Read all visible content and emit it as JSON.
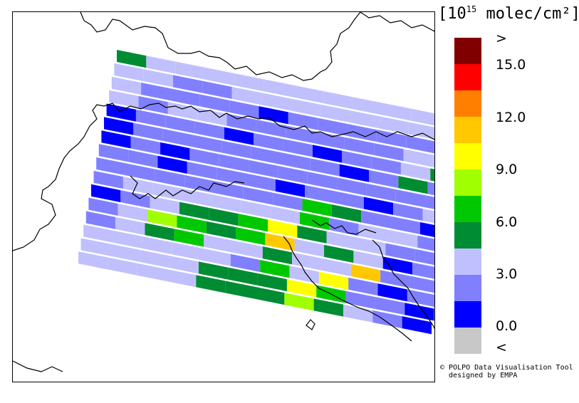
{
  "legend": {
    "units_prefix": "[10",
    "units_exponent": "15",
    "units_suffix": " molec/cm²]",
    "tick_labels": [
      ">",
      "15.0",
      "12.0",
      "9.0",
      "6.0",
      "3.0",
      "0.0",
      "<"
    ],
    "colors": [
      "#800000",
      "#ff0000",
      "#ff8000",
      "#ffc800",
      "#ffff00",
      "#a0ff00",
      "#00c800",
      "#008c32",
      "#c0c0ff",
      "#8080ff",
      "#0000ff",
      "#c8c8c8"
    ],
    "bins": [
      {
        "label": ">15.0",
        "color": "#800000"
      },
      {
        "range": [
          13.5,
          15.0
        ],
        "color": "#ff0000"
      },
      {
        "range": [
          12.0,
          13.5
        ],
        "color": "#ff8000"
      },
      {
        "range": [
          10.5,
          12.0
        ],
        "color": "#ffc800"
      },
      {
        "range": [
          9.0,
          10.5
        ],
        "color": "#ffff00"
      },
      {
        "range": [
          7.5,
          9.0
        ],
        "color": "#a0ff00"
      },
      {
        "range": [
          6.0,
          7.5
        ],
        "color": "#00c800"
      },
      {
        "range": [
          4.5,
          6.0
        ],
        "color": "#008c32"
      },
      {
        "range": [
          3.0,
          4.5
        ],
        "color": "#c0c0ff"
      },
      {
        "range": [
          1.5,
          3.0
        ],
        "color": "#8080ff"
      },
      {
        "range": [
          0.0,
          1.5
        ],
        "color": "#0000ff"
      },
      {
        "label": "<0.0",
        "color": "#c8c8c8"
      }
    ]
  },
  "credit": {
    "line1": "© POLPO Data Visualisation Tool",
    "line2": "  designed by EMPA"
  },
  "swath": {
    "rows": [
      [
        "G",
        "L",
        "L",
        "L",
        "L",
        "L",
        "L",
        "L",
        "L",
        "L",
        "L",
        "L"
      ],
      [
        "L",
        "L",
        "M",
        "M",
        "L",
        "L",
        "L",
        "L",
        "L",
        "L",
        "L",
        "L"
      ],
      [
        "L",
        "M",
        "M",
        "M",
        "M",
        "B",
        "M",
        "M",
        "M",
        "M",
        "M",
        "M"
      ],
      [
        "L",
        "M",
        "L",
        "L",
        "M",
        "M",
        "M",
        "M",
        "M",
        "M",
        "L",
        "L"
      ],
      [
        "B",
        "M",
        "M",
        "M",
        "B",
        "M",
        "M",
        "B",
        "M",
        "M",
        "L",
        "G"
      ],
      [
        "B",
        "M",
        "M",
        "M",
        "M",
        "M",
        "M",
        "M",
        "B",
        "M",
        "G",
        "M"
      ],
      [
        "B",
        "M",
        "B",
        "M",
        "M",
        "M",
        "M",
        "M",
        "M",
        "M",
        "M",
        "M"
      ],
      [
        "M",
        "M",
        "B",
        "M",
        "M",
        "M",
        "B",
        "M",
        "M",
        "B",
        "M",
        "L"
      ],
      [
        "M",
        "M",
        "M",
        "M",
        "M",
        "M",
        "M",
        "V",
        "G",
        "M",
        "M",
        "B"
      ],
      [
        "M",
        "L",
        "L",
        "L",
        "L",
        "L",
        "L",
        "V",
        "M",
        "L",
        "L",
        "M"
      ],
      [
        "B",
        "M",
        "L",
        "G",
        "G",
        "V",
        "Y",
        "G",
        "L",
        "L",
        "M",
        "M"
      ],
      [
        "M",
        "L",
        "A",
        "V",
        "G",
        "V",
        "X",
        "L",
        "G",
        "L",
        "B",
        "M"
      ],
      [
        "M",
        "L",
        "G",
        "V",
        "L",
        "L",
        "G",
        "L",
        "L",
        "X",
        "M",
        "M"
      ],
      [
        "L",
        "L",
        "L",
        "L",
        "L",
        "M",
        "V",
        "L",
        "Y",
        "M",
        "B",
        "M"
      ],
      [
        "L",
        "L",
        "L",
        "L",
        "G",
        "G",
        "G",
        "Y",
        "V",
        "M",
        "M",
        "B"
      ],
      [
        "L",
        "L",
        "L",
        "L",
        "G",
        "G",
        "G",
        "A",
        "G",
        "L",
        "M",
        "B"
      ]
    ]
  }
}
